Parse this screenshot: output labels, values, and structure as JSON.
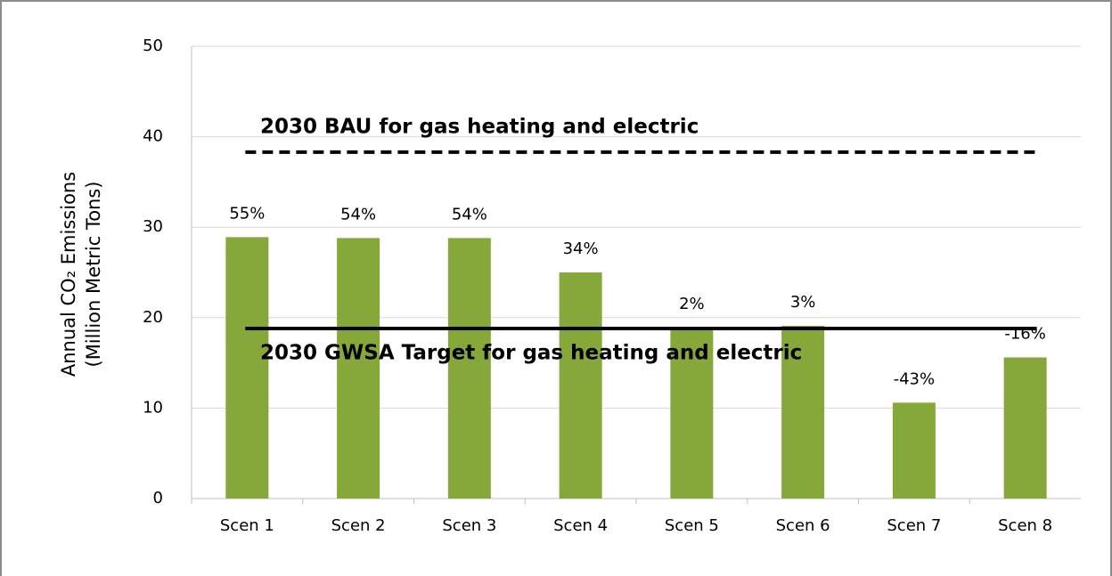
{
  "chart_data": {
    "type": "bar",
    "y_axis_label": [
      "Annual CO₂ Emissions",
      "(Million Metric Tons)"
    ],
    "categories": [
      "Scen 1",
      "Scen 2",
      "Scen 3",
      "Scen 4",
      "Scen 5",
      "Scen 6",
      "Scen 7",
      "Scen 8"
    ],
    "values": [
      28.9,
      28.8,
      28.8,
      25.0,
      18.9,
      19.1,
      10.6,
      15.6
    ],
    "bar_annotations": [
      "55%",
      "54%",
      "54%",
      "34%",
      "2%",
      "3%",
      "-43%",
      "-16%"
    ],
    "color": "#86a83a",
    "ylim": [
      0,
      50
    ],
    "yticks": [
      0,
      10,
      20,
      30,
      40,
      50
    ],
    "grid": true,
    "reference_lines": [
      {
        "label": "2030 BAU for gas heating and electric",
        "value": 38.3,
        "style": "dashed"
      },
      {
        "label": "2030 GWSA Target for gas heating and electric",
        "value": 18.8,
        "style": "solid"
      }
    ]
  }
}
